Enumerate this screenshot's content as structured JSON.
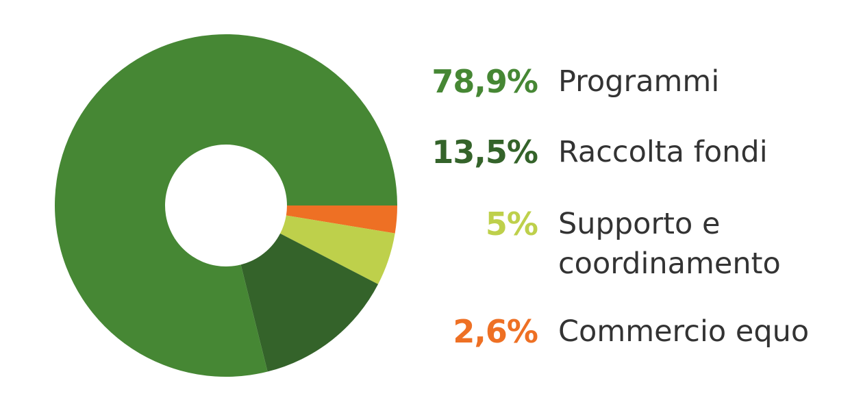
{
  "chart_data": {
    "type": "pie",
    "donut": true,
    "legend_position": "right",
    "slices": [
      {
        "value": 78.9,
        "percent_label": "78,9%",
        "label": "Programmi",
        "color": "#468734"
      },
      {
        "value": 13.5,
        "percent_label": "13,5%",
        "label": "Raccolta fondi",
        "color": "#34632a"
      },
      {
        "value": 5.0,
        "percent_label": "5%",
        "label_lines": [
          "Supporto e",
          "coordinamento"
        ],
        "color": "#bed04b"
      },
      {
        "value": 2.6,
        "percent_label": "2,6%",
        "label": "Commercio equo",
        "color": "#ee7024"
      }
    ]
  }
}
